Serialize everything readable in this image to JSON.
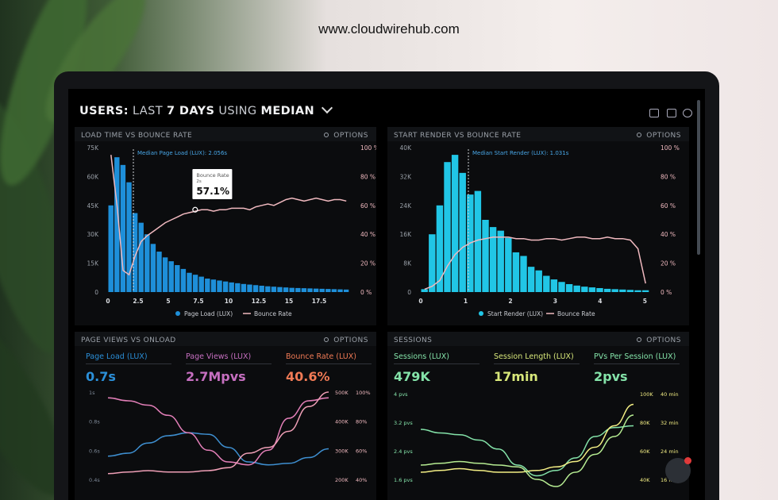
{
  "watermark": "www.cloudwirehub.com",
  "header": {
    "prefix": "USERS:",
    "last": "LAST",
    "days": "7 DAYS",
    "using": "USING",
    "median": "MEDIAN"
  },
  "panels": {
    "load_time": {
      "title": "LOAD TIME VS BOUNCE RATE",
      "options": "OPTIONS"
    },
    "start_render": {
      "title": "START RENDER VS BOUNCE RATE",
      "options": "OPTIONS"
    },
    "page_views": {
      "title": "PAGE VIEWS VS ONLOAD",
      "options": "OPTIONS"
    },
    "sessions": {
      "title": "SESSIONS",
      "options": "OPTIONS"
    }
  },
  "colors": {
    "blue": "#1e8fd9",
    "cyan": "#21c6e6",
    "pink": "#f0b9bf",
    "green": "#84e3a9",
    "yellow": "#f3ee84",
    "purple": "#c66fc0",
    "orange": "#f07a55"
  },
  "metrics_left": [
    {
      "label": "Page Load (LUX)",
      "value": "0.7s",
      "color": "#2b8fd8"
    },
    {
      "label": "Page Views (LUX)",
      "value": "2.7Mpvs",
      "color": "#c66fc0"
    },
    {
      "label": "Bounce Rate (LUX)",
      "value": "40.6%",
      "color": "#f07a55"
    }
  ],
  "metrics_right": [
    {
      "label": "Sessions (LUX)",
      "value": "479K",
      "color": "#84e3a9"
    },
    {
      "label": "Session Length (LUX)",
      "value": "17min",
      "color": "#d8e87a"
    },
    {
      "label": "PVs Per Session (LUX)",
      "value": "2pvs",
      "color": "#84e3a9"
    }
  ],
  "chart_data": [
    {
      "type": "bar",
      "title": "LOAD TIME VS BOUNCE RATE",
      "annotation": "Median Page Load (LUX): 2.056s",
      "tooltip": {
        "label": "Bounce Rate",
        "sub": "2s",
        "value": "57.1%"
      },
      "xticks": [
        "0",
        "2.5",
        "5",
        "7.5",
        "10",
        "12.5",
        "15",
        "17.5"
      ],
      "yticks": [
        "75K",
        "60K",
        "45K",
        "30K",
        "15K",
        "0"
      ],
      "y2ticks": [
        "100 %",
        "80 %",
        "60 %",
        "40 %",
        "20 %",
        "0 %"
      ],
      "ylim": [
        0,
        75000
      ],
      "bars": [
        45000,
        70000,
        66000,
        57000,
        41000,
        36000,
        30000,
        25000,
        21000,
        18000,
        16000,
        14000,
        12000,
        10000,
        9000,
        8000,
        7000,
        6500,
        6000,
        5500,
        5000,
        4600,
        4200,
        3900,
        3600,
        3300,
        3000,
        2800,
        2600,
        2400,
        2200,
        2100,
        2000,
        1900,
        1800,
        1700,
        1600,
        1500,
        1400,
        1300
      ],
      "series": [
        {
          "name": "Page Load (LUX)",
          "ref": "bars"
        },
        {
          "name": "Bounce Rate",
          "values": [
            95,
            60,
            15,
            12,
            25,
            35,
            39,
            42,
            45,
            48,
            50,
            52,
            54,
            55,
            56,
            57,
            57,
            56,
            57,
            57,
            58,
            58,
            58,
            57,
            59,
            60,
            61,
            60,
            62,
            64,
            65,
            64,
            63,
            64,
            65,
            64,
            63,
            64,
            64,
            63
          ]
        }
      ]
    },
    {
      "type": "bar",
      "title": "START RENDER VS BOUNCE RATE",
      "annotation": "Median Start Render (LUX): 1.031s",
      "xticks": [
        "0",
        "1",
        "2",
        "3",
        "4",
        "5"
      ],
      "yticks": [
        "40K",
        "32K",
        "24K",
        "16K",
        "8K",
        "0"
      ],
      "y2ticks": [
        "100 %",
        "80 %",
        "60 %",
        "40 %",
        "20 %",
        "0 %"
      ],
      "ylim": [
        0,
        40000
      ],
      "bars": [
        800,
        16000,
        24000,
        36000,
        38000,
        33000,
        27000,
        28000,
        20000,
        18000,
        17000,
        15000,
        11000,
        10000,
        7000,
        6000,
        4500,
        3500,
        2800,
        2200,
        1800,
        1500,
        1300,
        1100,
        900,
        800,
        700,
        600,
        500,
        500
      ],
      "series": [
        {
          "name": "Start Render (LUX)",
          "ref": "bars"
        },
        {
          "name": "Bounce Rate",
          "values": [
            2,
            4,
            8,
            18,
            26,
            31,
            34,
            36,
            37,
            38,
            38,
            38,
            37,
            37,
            36,
            36,
            37,
            37,
            36,
            37,
            38,
            38,
            37,
            37,
            38,
            37,
            37,
            36,
            30,
            6
          ]
        }
      ]
    },
    {
      "type": "line",
      "title": "PAGE VIEWS VS ONLOAD",
      "yticks": [
        "1s",
        "0.8s",
        "0.6s",
        "0.4s"
      ],
      "y2ticks": [
        "500K",
        "400K",
        "300K",
        "200K"
      ],
      "y3ticks": [
        "100%",
        "80%",
        "60%",
        "40%"
      ],
      "series": [
        {
          "name": "Page Load (LUX)",
          "values": [
            0.56,
            0.58,
            0.65,
            0.7,
            0.72,
            0.71,
            0.62,
            0.52,
            0.5,
            0.51,
            0.55,
            0.61
          ]
        },
        {
          "name": "Page Views (LUX)",
          "values": [
            480,
            470,
            455,
            420,
            360,
            300,
            260,
            250,
            300,
            410,
            470,
            480
          ]
        },
        {
          "name": "Bounce Rate (LUX)",
          "values": [
            44,
            45,
            46,
            45,
            45,
            46,
            48,
            58,
            62,
            73,
            90,
            100
          ]
        }
      ]
    },
    {
      "type": "line",
      "title": "SESSIONS",
      "yticks": [
        "4 pvs",
        "3.2 pvs",
        "2.4 pvs",
        "1.6 pvs"
      ],
      "y2ticks": [
        "100K",
        "80K",
        "60K",
        "40K"
      ],
      "y3ticks": [
        "40 min",
        "32 min",
        "24 min",
        "16 min"
      ],
      "series": [
        {
          "name": "Sessions (LUX)",
          "values": [
            3.0,
            2.9,
            2.85,
            2.7,
            2.45,
            2.0,
            1.7,
            1.85,
            2.2,
            2.8,
            3.05,
            3.1
          ]
        },
        {
          "name": "Session Length (LUX)",
          "values": [
            18,
            18.5,
            19,
            18.5,
            18,
            18,
            18.5,
            19.5,
            21,
            25,
            31,
            37
          ]
        },
        {
          "name": "PVs Per Session (LUX)",
          "values": [
            2.0,
            2.05,
            2.1,
            2.05,
            2.0,
            1.95,
            1.6,
            1.4,
            1.8,
            2.3,
            2.8,
            3.4
          ]
        }
      ]
    }
  ]
}
